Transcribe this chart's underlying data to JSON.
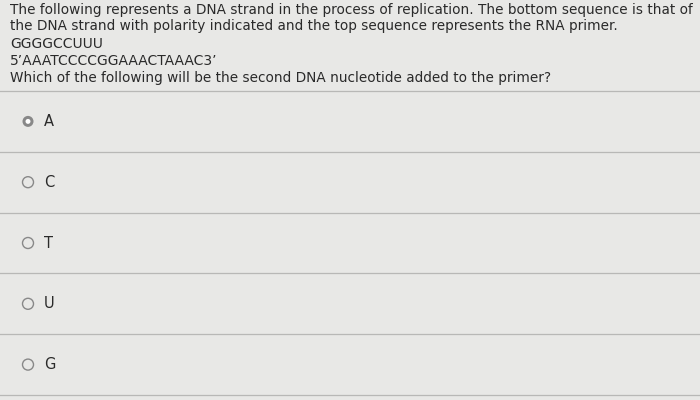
{
  "background_color": "#e8e8e6",
  "top_bg_color": "#dcdcda",
  "options_bg_color": "#e0e0de",
  "text_color": "#2a2a2a",
  "paragraph_line1": "The following represents a DNA strand in the process of replication. The bottom sequence is that of",
  "paragraph_line2": "the DNA strand with polarity indicated and the top sequence represents the RNA primer.",
  "line3": "GGGGCCUUU",
  "line4": "5’AAATCCCCGGAAACTAAAC3’",
  "question": "Which of the following will be the second DNA nucleotide added to the primer?",
  "options": [
    "A",
    "C",
    "T",
    "U",
    "G"
  ],
  "selected_option": 0,
  "divider_color": "#b8b8b6",
  "radio_color": "#888888",
  "radio_selected_color": "#888888",
  "font_size_text": 9.8,
  "font_size_options": 10.5,
  "font_size_seq": 10.0
}
